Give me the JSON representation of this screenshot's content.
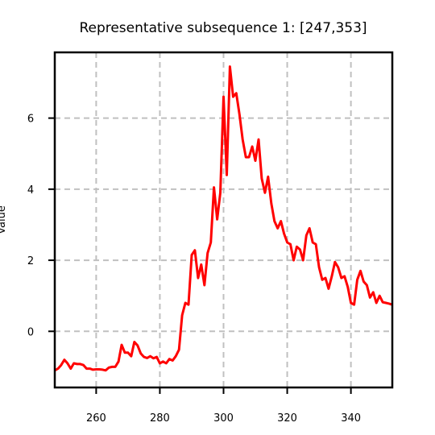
{
  "chart_data": {
    "type": "line",
    "title": "Representative subsequence 1: [247,353]",
    "xlabel": "",
    "ylabel": "Value",
    "xlim": [
      247,
      353
    ],
    "ylim": [
      -1.58,
      7.85
    ],
    "grid": true,
    "legend": "none",
    "xticks": [
      260,
      280,
      300,
      320,
      340
    ],
    "yticks": [
      0,
      2,
      4,
      6
    ],
    "colors": {
      "line": "#ff0000",
      "grid": "#c0c0c0",
      "axes": "#000000"
    },
    "series": [
      {
        "x": [
          247,
          248,
          249,
          250,
          251,
          252,
          253,
          254,
          255,
          256,
          257,
          258,
          259,
          260,
          261,
          262,
          263,
          264,
          265,
          266,
          267,
          268,
          269,
          270,
          271,
          272,
          273,
          274,
          275,
          276,
          277,
          278,
          279,
          280,
          281,
          282,
          283,
          284,
          285,
          286,
          287,
          288,
          289,
          290,
          291,
          292,
          293,
          294,
          295,
          296,
          297,
          298,
          299,
          300,
          301,
          302,
          303,
          304,
          305,
          306,
          307,
          308,
          309,
          310,
          311,
          312,
          313,
          314,
          315,
          316,
          317,
          318,
          319,
          320,
          321,
          322,
          323,
          324,
          325,
          326,
          327,
          328,
          329,
          330,
          331,
          332,
          333,
          334,
          335,
          336,
          337,
          338,
          339,
          340,
          341,
          342,
          343,
          344,
          345,
          346,
          347,
          348,
          349,
          350,
          351,
          352,
          353
        ],
        "y": [
          -1.1,
          -1.05,
          -0.95,
          -0.8,
          -0.9,
          -1.05,
          -0.9,
          -0.92,
          -0.92,
          -0.95,
          -1.05,
          -1.05,
          -1.08,
          -1.07,
          -1.07,
          -1.08,
          -1.1,
          -1.02,
          -1.0,
          -1.0,
          -0.85,
          -0.38,
          -0.6,
          -0.6,
          -0.7,
          -0.3,
          -0.4,
          -0.62,
          -0.72,
          -0.75,
          -0.7,
          -0.76,
          -0.72,
          -0.9,
          -0.85,
          -0.9,
          -0.78,
          -0.82,
          -0.7,
          -0.52,
          0.45,
          0.8,
          0.75,
          2.15,
          2.28,
          1.5,
          1.88,
          1.3,
          2.2,
          2.5,
          4.05,
          3.15,
          3.9,
          6.6,
          4.4,
          7.45,
          6.6,
          6.7,
          6.1,
          5.4,
          4.9,
          4.9,
          5.2,
          4.8,
          5.4,
          4.3,
          3.9,
          4.35,
          3.6,
          3.1,
          2.9,
          3.1,
          2.75,
          2.5,
          2.45,
          2.0,
          2.38,
          2.3,
          2.0,
          2.7,
          2.9,
          2.5,
          2.45,
          1.8,
          1.45,
          1.5,
          1.2,
          1.55,
          1.95,
          1.8,
          1.5,
          1.55,
          1.25,
          0.8,
          0.75,
          1.45,
          1.7,
          1.4,
          1.3,
          0.95,
          1.1,
          0.8,
          1.0,
          0.82,
          0.8,
          0.78,
          0.75
        ]
      }
    ]
  }
}
